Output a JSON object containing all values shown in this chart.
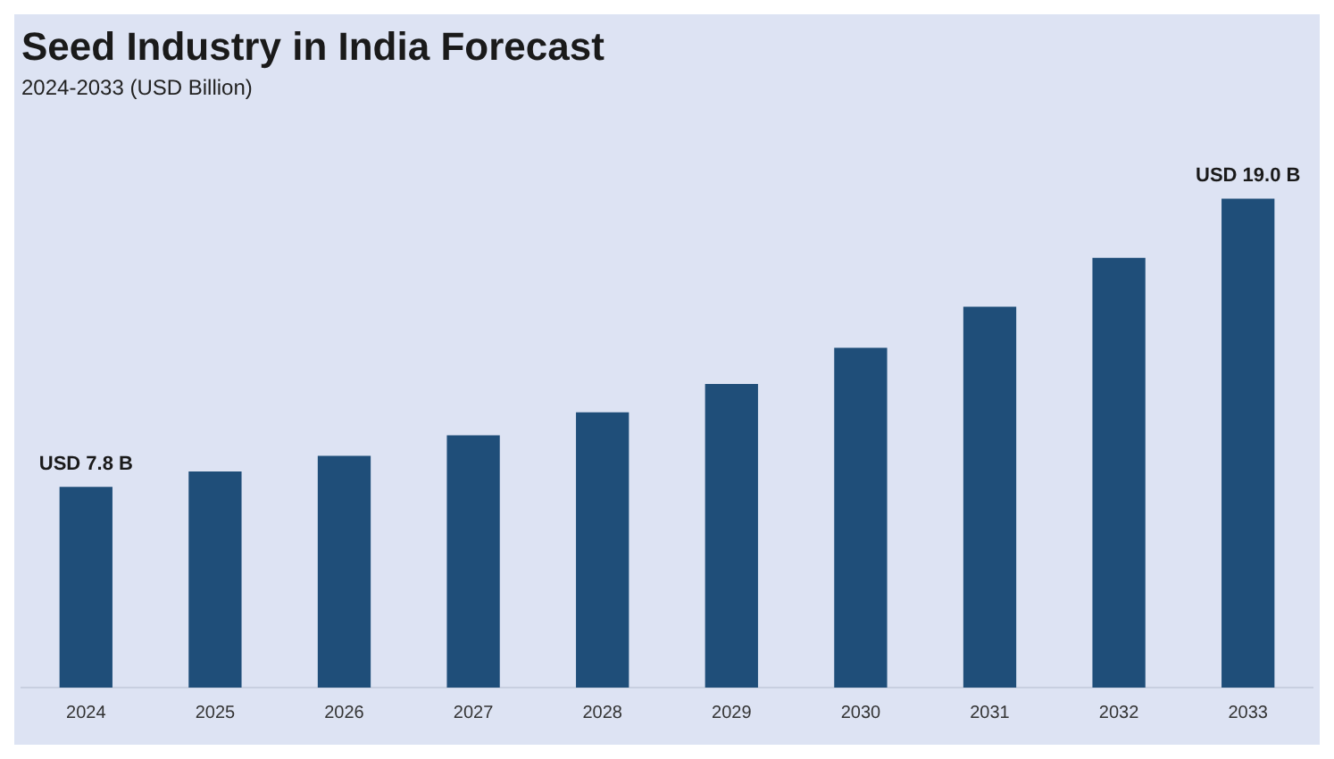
{
  "chart_data": {
    "type": "bar",
    "title": "Seed Industry in India Forecast",
    "subtitle": "2024-2033 (USD Billion)",
    "categories": [
      "2024",
      "2025",
      "2026",
      "2027",
      "2028",
      "2029",
      "2030",
      "2031",
      "2032",
      "2033"
    ],
    "values": [
      7.8,
      8.4,
      9.0,
      9.8,
      10.7,
      11.8,
      13.2,
      14.8,
      16.7,
      19.0
    ],
    "value_labels": [
      "USD 7.8 B",
      null,
      null,
      null,
      null,
      null,
      null,
      null,
      null,
      "USD 19.0 B"
    ],
    "color": "#1f4e79",
    "tick_labels": "x",
    "grid": false,
    "legend": false
  }
}
